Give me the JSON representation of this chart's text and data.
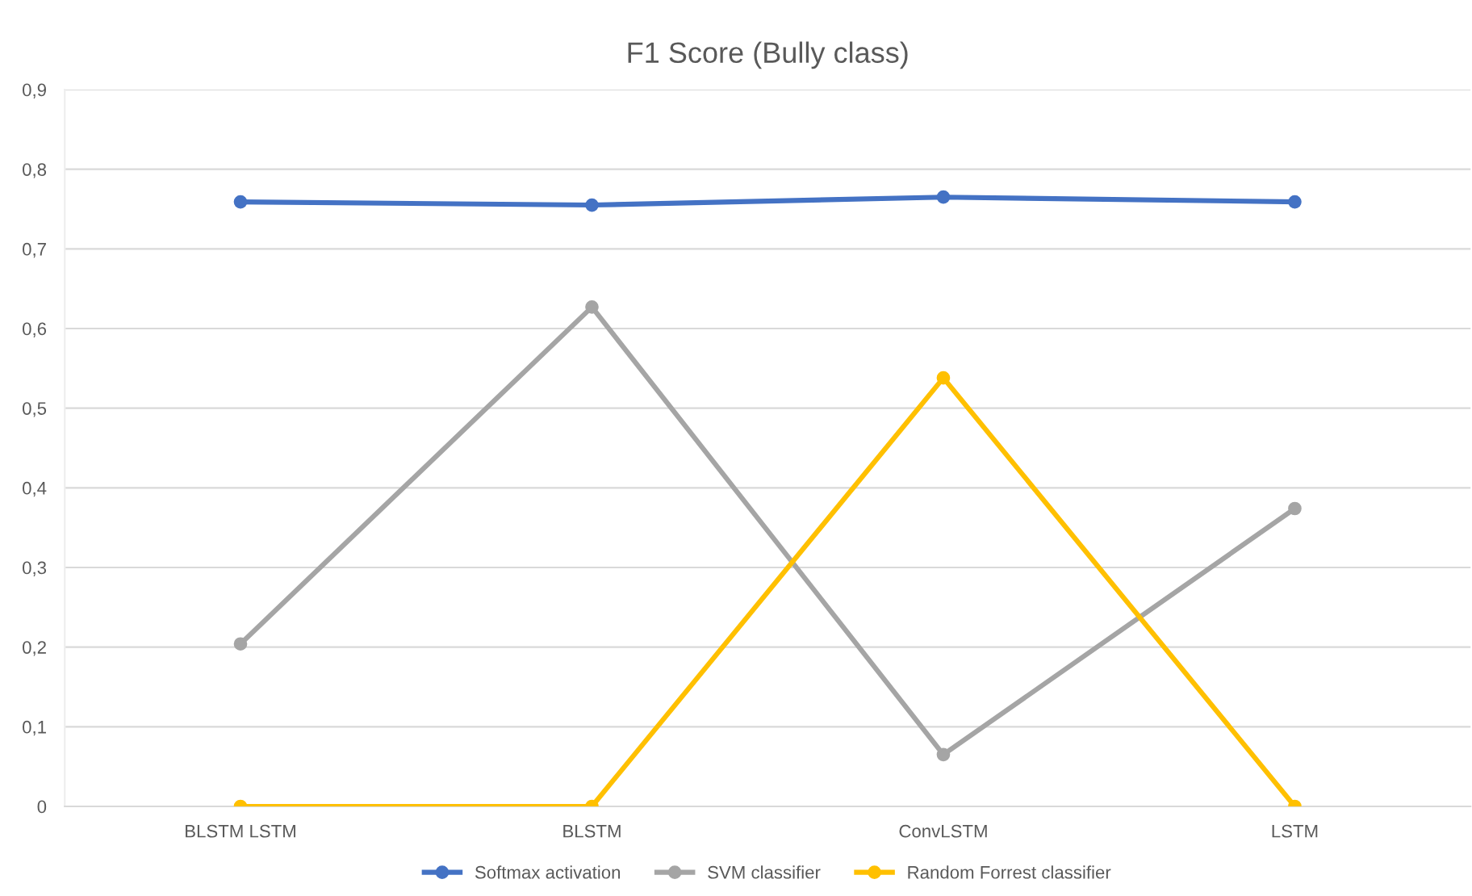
{
  "chart_data": {
    "type": "line",
    "title": "F1 Score (Bully class)",
    "categories": [
      "BLSTM LSTM",
      "BLSTM",
      "ConvLSTM",
      "LSTM"
    ],
    "series": [
      {
        "name": "Softmax activation",
        "color": "#4472c4",
        "values": [
          0.759,
          0.755,
          0.765,
          0.759
        ]
      },
      {
        "name": "SVM classifier",
        "color": "#a5a5a5",
        "values": [
          0.204,
          0.627,
          0.065,
          0.374
        ]
      },
      {
        "name": "Random Forrest classifier",
        "color": "#ffc000",
        "values": [
          0,
          0,
          0.538,
          0
        ]
      }
    ],
    "ylim": [
      0,
      0.9
    ],
    "yticks": [
      0,
      {
        "value": 0.1,
        "label": "0,1"
      },
      {
        "value": 0.2,
        "label": "0,2"
      },
      {
        "value": 0.3,
        "label": "0,3"
      },
      {
        "value": 0.4,
        "label": "0,4"
      },
      {
        "value": 0.5,
        "label": "0,5"
      },
      {
        "value": 0.6,
        "label": "0,6"
      },
      {
        "value": 0.7,
        "label": "0,7"
      },
      {
        "value": 0.8,
        "label": "0,8"
      },
      {
        "value": 0.9,
        "label": "0,9"
      }
    ],
    "grid": "y",
    "legend": "bottom",
    "marker": "circle",
    "line_style": "solid"
  }
}
